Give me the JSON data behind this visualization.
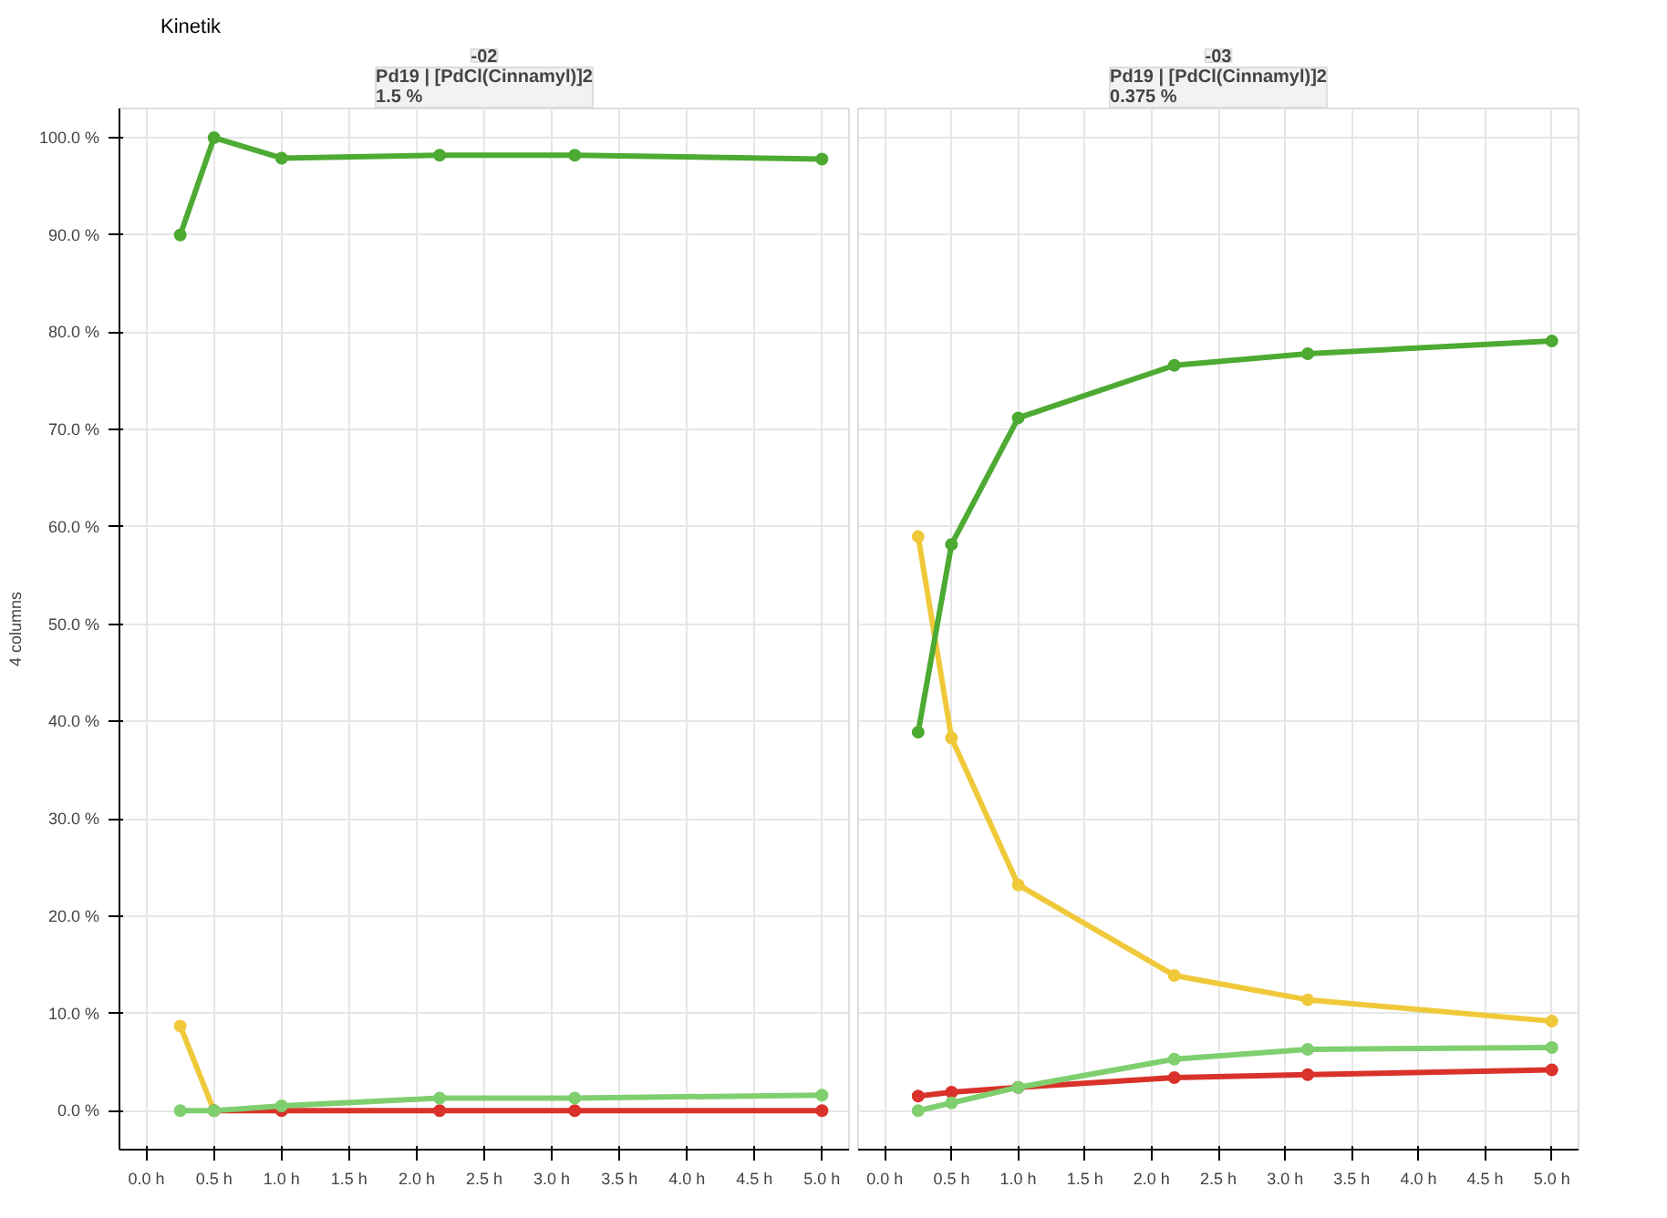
{
  "chart_data": [
    {
      "type": "line",
      "title": "-02",
      "subtitle": "Pd19 | [PdCl(Cinnamyl)]2\n1.5 %",
      "ylabel": "4 columns",
      "annotations": [
        "Kinetik"
      ],
      "x": [
        0.25,
        0.5,
        1.0,
        2.17,
        3.17,
        5.0
      ],
      "series": [
        {
          "color": "#f0c93a",
          "values": [
            8.7,
            0,
            null,
            null,
            null,
            null
          ]
        },
        {
          "color": "#d9322a",
          "values": [
            null,
            0,
            0,
            0,
            0,
            0
          ]
        },
        {
          "color": "#7fcf6f",
          "values": [
            0,
            0,
            0.5,
            1.3,
            1.3,
            1.6
          ]
        },
        {
          "color": "#4daa32",
          "values": [
            90,
            100,
            97.9,
            98.2,
            98.2,
            97.8
          ]
        }
      ],
      "xlim": [
        -0.2,
        5.2
      ],
      "ylim": [
        -4,
        103
      ],
      "xticks": [
        {
          "value": 0,
          "label": "0.0 h"
        },
        {
          "value": 0.5,
          "label": "0.5 h"
        },
        {
          "value": 1,
          "label": "1.0 h"
        },
        {
          "value": 1.5,
          "label": "1.5 h"
        },
        {
          "value": 2,
          "label": "2.0 h"
        },
        {
          "value": 2.5,
          "label": "2.5 h"
        },
        {
          "value": 3,
          "label": "3.0 h"
        },
        {
          "value": 3.5,
          "label": "3.5 h"
        },
        {
          "value": 4,
          "label": "4.0 h"
        },
        {
          "value": 4.5,
          "label": "4.5 h"
        },
        {
          "value": 5,
          "label": "5.0 h"
        }
      ],
      "yticks": [
        {
          "value": 0,
          "label": "0.0 %"
        },
        {
          "value": 10,
          "label": "10.0 %"
        },
        {
          "value": 20,
          "label": "20.0 %"
        },
        {
          "value": 30,
          "label": "30.0 %"
        },
        {
          "value": 40,
          "label": "40.0 %"
        },
        {
          "value": 50,
          "label": "50.0 %"
        },
        {
          "value": 60,
          "label": "60.0 %"
        },
        {
          "value": 70,
          "label": "70.0 %"
        },
        {
          "value": 80,
          "label": "80.0 %"
        },
        {
          "value": 90,
          "label": "90.0 %"
        },
        {
          "value": 100,
          "label": "100.0 %"
        }
      ],
      "grid": true,
      "marker": "circle",
      "line_style": "solid"
    },
    {
      "type": "line",
      "title": "-03",
      "subtitle": "Pd19 | [PdCl(Cinnamyl)]2\n0.375 %",
      "x": [
        0.25,
        0.5,
        1.0,
        2.17,
        3.17,
        5.0
      ],
      "series": [
        {
          "color": "#f0c93a",
          "values": [
            59.0,
            38.3,
            23.2,
            13.9,
            11.4,
            9.2
          ]
        },
        {
          "color": "#d9322a",
          "values": [
            1.5,
            1.9,
            2.4,
            3.4,
            3.7,
            4.2
          ]
        },
        {
          "color": "#7fcf6f",
          "values": [
            0,
            0.8,
            2.4,
            5.3,
            6.3,
            6.5
          ]
        },
        {
          "color": "#4daa32",
          "values": [
            38.9,
            58.2,
            71.2,
            76.6,
            77.8,
            79.1
          ]
        }
      ],
      "xlim": [
        -0.2,
        5.2
      ],
      "ylim": [
        -4,
        103
      ],
      "xticks": [
        {
          "value": 0,
          "label": "0.0 h"
        },
        {
          "value": 0.5,
          "label": "0.5 h"
        },
        {
          "value": 1,
          "label": "1.0 h"
        },
        {
          "value": 1.5,
          "label": "1.5 h"
        },
        {
          "value": 2,
          "label": "2.0 h"
        },
        {
          "value": 2.5,
          "label": "2.5 h"
        },
        {
          "value": 3,
          "label": "3.0 h"
        },
        {
          "value": 3.5,
          "label": "3.5 h"
        },
        {
          "value": 4,
          "label": "4.0 h"
        },
        {
          "value": 4.5,
          "label": "4.5 h"
        },
        {
          "value": 5,
          "label": "5.0 h"
        }
      ],
      "yticks": [
        {
          "value": 0,
          "label": null
        },
        {
          "value": 10,
          "label": null
        },
        {
          "value": 20,
          "label": null
        },
        {
          "value": 30,
          "label": null
        },
        {
          "value": 40,
          "label": null
        },
        {
          "value": 50,
          "label": null
        },
        {
          "value": 60,
          "label": null
        },
        {
          "value": 70,
          "label": null
        },
        {
          "value": 80,
          "label": null
        },
        {
          "value": 90,
          "label": null
        },
        {
          "value": 100,
          "label": null
        }
      ],
      "tick_labels": "x",
      "grid": true,
      "marker": "circle",
      "line_style": "solid"
    }
  ]
}
